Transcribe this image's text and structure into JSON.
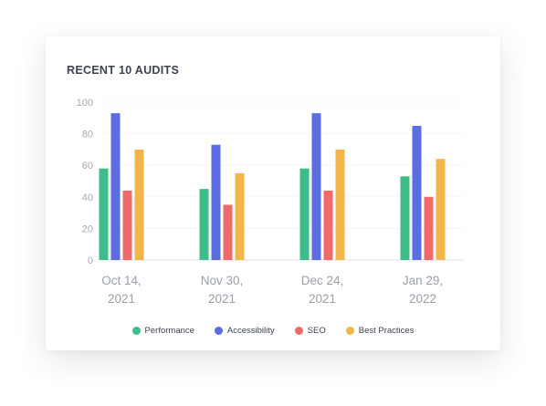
{
  "card": {
    "title": "RECENT 10 AUDITS"
  },
  "chart_data": {
    "type": "bar",
    "title": "RECENT 10 AUDITS",
    "xlabel": "",
    "ylabel": "",
    "ylim": [
      0,
      100
    ],
    "yticks": [
      0,
      20,
      40,
      60,
      80,
      100
    ],
    "grid": false,
    "legend_position": "bottom",
    "categories": [
      [
        "Oct 14,",
        "2021"
      ],
      [
        "Nov 30,",
        "2021"
      ],
      [
        "Dec 24,",
        "2021"
      ],
      [
        "Jan 29,",
        "2022"
      ]
    ],
    "series": [
      {
        "name": "Performance",
        "color": "#3dbd8a",
        "values": [
          58,
          45,
          58,
          53
        ]
      },
      {
        "name": "Accessibility",
        "color": "#5b6ee1",
        "values": [
          93,
          73,
          93,
          85
        ]
      },
      {
        "name": "SEO",
        "color": "#ef6b6b",
        "values": [
          44,
          35,
          44,
          40
        ]
      },
      {
        "name": "Best Practices",
        "color": "#f2b54a",
        "values": [
          70,
          55,
          70,
          64
        ]
      }
    ]
  }
}
